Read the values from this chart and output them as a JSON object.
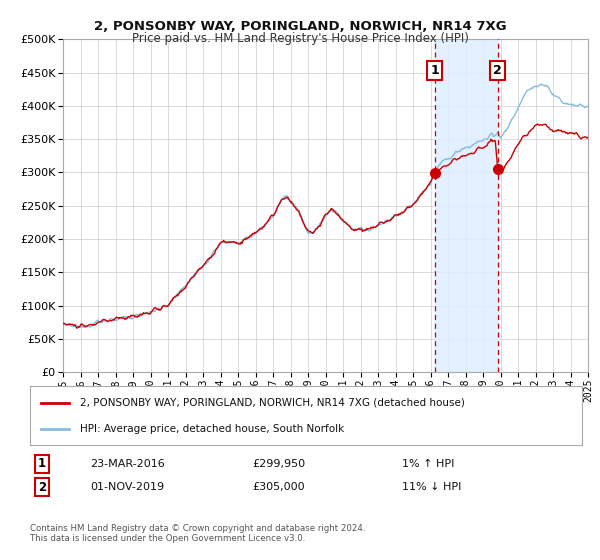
{
  "title": "2, PONSONBY WAY, PORINGLAND, NORWICH, NR14 7XG",
  "subtitle": "Price paid vs. HM Land Registry's House Price Index (HPI)",
  "red_line_label": "2, PONSONBY WAY, PORINGLAND, NORWICH, NR14 7XG (detached house)",
  "blue_line_label": "HPI: Average price, detached house, South Norfolk",
  "annotation1_date": "23-MAR-2016",
  "annotation1_price": "£299,950",
  "annotation1_hpi": "1% ↑ HPI",
  "annotation2_date": "01-NOV-2019",
  "annotation2_price": "£305,000",
  "annotation2_hpi": "11% ↓ HPI",
  "sale1_x": 2016.23,
  "sale1_y": 299950,
  "sale2_x": 2019.84,
  "sale2_y": 305000,
  "vline1_x": 2016.23,
  "vline2_x": 2019.84,
  "shade_color": "#ddeeff",
  "red_color": "#cc0000",
  "blue_color": "#88bbdd",
  "background_color": "#ffffff",
  "grid_color": "#cccccc",
  "ylim": [
    0,
    500000
  ],
  "xlim_start": 1995,
  "xlim_end": 2025,
  "footer": "Contains HM Land Registry data © Crown copyright and database right 2024.\nThis data is licensed under the Open Government Licence v3.0."
}
